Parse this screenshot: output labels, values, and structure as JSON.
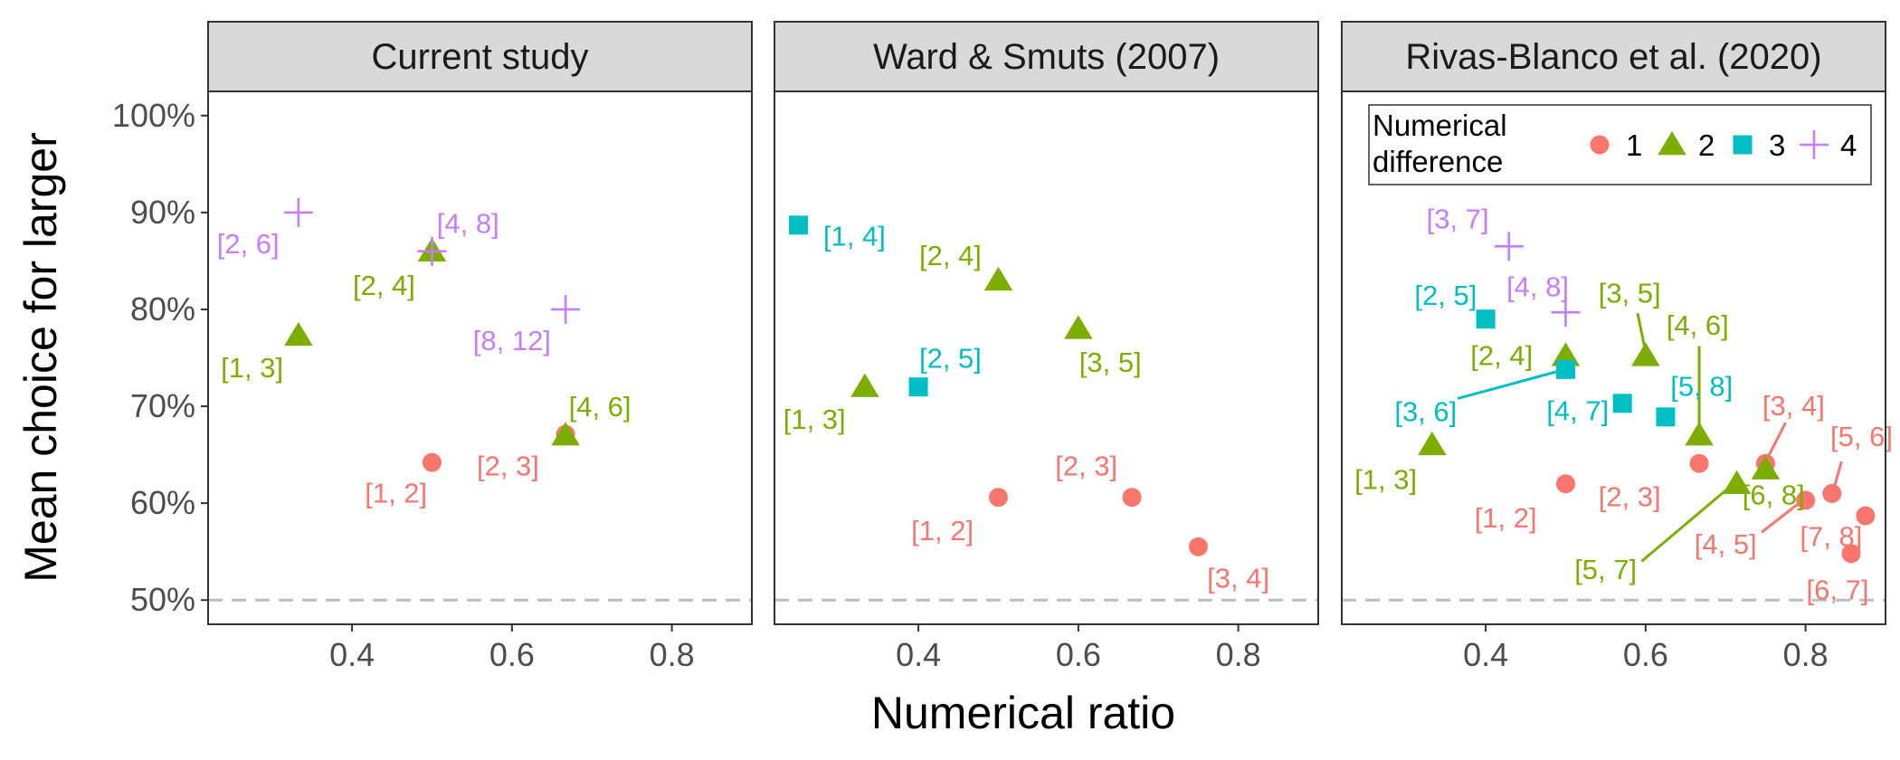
{
  "chart_data": {
    "type": "scatter",
    "xlabel": "Numerical ratio",
    "ylabel": "Mean choice for larger",
    "xlim": [
      0.22,
      0.9
    ],
    "ylim": [
      47.5,
      102.5
    ],
    "x_ticks": [
      0.4,
      0.6,
      0.8
    ],
    "x_tick_labels": [
      "0.4",
      "0.6",
      "0.8"
    ],
    "y_ticks": [
      50,
      60,
      70,
      80,
      90,
      100
    ],
    "y_tick_labels": [
      "50%",
      "60%",
      "70%",
      "80%",
      "90%",
      "100%"
    ],
    "reference_line": 50,
    "grid": false,
    "legend": {
      "title_lines": [
        "Numerical",
        "difference"
      ],
      "placement": "top-right",
      "entries": [
        {
          "key": 1,
          "label": "1",
          "color": "#F8766D",
          "shape": "circle"
        },
        {
          "key": 2,
          "label": "2",
          "color": "#7CAE00",
          "shape": "triangle"
        },
        {
          "key": 3,
          "label": "3",
          "color": "#00BFC4",
          "shape": "square"
        },
        {
          "key": 4,
          "label": "4",
          "color": "#C77CFF",
          "shape": "plus"
        }
      ]
    },
    "panels": [
      {
        "title": "Current study",
        "points": [
          {
            "label": "[1, 2]",
            "x": 0.5,
            "y": 64.2,
            "diff": 1,
            "lx": 0.455,
            "ly": 61.1
          },
          {
            "label": "[2, 3]",
            "x": 0.667,
            "y": 67.1,
            "diff": 1,
            "lx": 0.595,
            "ly": 63.9
          },
          {
            "label": "[1, 3]",
            "x": 0.333,
            "y": 77.3,
            "diff": 2,
            "lx": 0.275,
            "ly": 74.0
          },
          {
            "label": "[2, 4]",
            "x": 0.5,
            "y": 86.0,
            "diff": 2,
            "lx": 0.44,
            "ly": 82.5
          },
          {
            "label": "[4, 6]",
            "x": 0.667,
            "y": 67.0,
            "diff": 2,
            "lx": 0.71,
            "ly": 70.0
          },
          {
            "label": "[2, 6]",
            "x": 0.333,
            "y": 90.0,
            "diff": 4,
            "lx": 0.27,
            "ly": 86.8
          },
          {
            "label": "[4, 8]",
            "x": 0.5,
            "y": 86.0,
            "diff": 4,
            "lx": 0.545,
            "ly": 88.9
          },
          {
            "label": "[8, 12]",
            "x": 0.667,
            "y": 80.0,
            "diff": 4,
            "lx": 0.6,
            "ly": 76.8
          }
        ]
      },
      {
        "title": "Ward & Smuts (2007)",
        "points": [
          {
            "label": "[1, 2]",
            "x": 0.5,
            "y": 60.6,
            "diff": 1,
            "lx": 0.43,
            "ly": 57.2
          },
          {
            "label": "[2, 3]",
            "x": 0.667,
            "y": 60.6,
            "diff": 1,
            "lx": 0.61,
            "ly": 63.9
          },
          {
            "label": "[3, 4]",
            "x": 0.75,
            "y": 55.5,
            "diff": 1,
            "lx": 0.8,
            "ly": 52.3
          },
          {
            "label": "[1, 3]",
            "x": 0.333,
            "y": 72.0,
            "diff": 2,
            "lx": 0.27,
            "ly": 68.7
          },
          {
            "label": "[2, 4]",
            "x": 0.5,
            "y": 83.0,
            "diff": 2,
            "lx": 0.44,
            "ly": 85.6
          },
          {
            "label": "[3, 5]",
            "x": 0.6,
            "y": 78.0,
            "diff": 2,
            "lx": 0.64,
            "ly": 74.6
          },
          {
            "label": "[1, 4]",
            "x": 0.25,
            "y": 88.7,
            "diff": 3,
            "lx": 0.32,
            "ly": 87.6
          },
          {
            "label": "[2, 5]",
            "x": 0.4,
            "y": 72.0,
            "diff": 3,
            "lx": 0.44,
            "ly": 75.0
          }
        ]
      },
      {
        "title": "Rivas-Blanco et al. (2020)",
        "points": [
          {
            "label": "[1, 2]",
            "x": 0.5,
            "y": 62.0,
            "diff": 1,
            "lx": 0.425,
            "ly": 58.5
          },
          {
            "label": "[2, 3]",
            "x": 0.667,
            "y": 64.1,
            "diff": 1,
            "lx": 0.58,
            "ly": 60.7
          },
          {
            "label": "[3, 4]",
            "x": 0.75,
            "y": 64.1,
            "diff": 1,
            "lx": 0.785,
            "ly": 70.1,
            "seg": [
              0.775,
              68.3,
              0.752,
              64.6
            ]
          },
          {
            "label": "[4, 5]",
            "x": 0.8,
            "y": 60.3,
            "diff": 1,
            "lx": 0.7,
            "ly": 55.8,
            "seg": [
              0.745,
              57.0,
              0.795,
              60.2
            ]
          },
          {
            "label": "[5, 6]",
            "x": 0.833,
            "y": 61.0,
            "diff": 1,
            "lx": 0.87,
            "ly": 66.9,
            "seg": [
              0.845,
              64.3,
              0.835,
              61.4
            ]
          },
          {
            "label": "[6, 7]",
            "x": 0.857,
            "y": 54.8,
            "diff": 1,
            "lx": 0.84,
            "ly": 51.1
          },
          {
            "label": "[7, 8]",
            "x": 0.875,
            "y": 58.7,
            "diff": 1,
            "lx": 0.832,
            "ly": 56.6
          },
          {
            "label": "[1, 3]",
            "x": 0.333,
            "y": 66.0,
            "diff": 2,
            "lx": 0.275,
            "ly": 62.5
          },
          {
            "label": "[2, 4]",
            "x": 0.5,
            "y": 75.2,
            "diff": 2,
            "lx": 0.42,
            "ly": 75.3
          },
          {
            "label": "[3, 5]",
            "x": 0.6,
            "y": 75.2,
            "diff": 2,
            "lx": 0.58,
            "ly": 81.7,
            "seg": [
              0.59,
              79.6,
              0.6,
              75.6
            ]
          },
          {
            "label": "[4, 6]",
            "x": 0.667,
            "y": 67.0,
            "diff": 2,
            "lx": 0.665,
            "ly": 78.4,
            "seg": [
              0.667,
              76.2,
              0.667,
              67.5
            ]
          },
          {
            "label": "[5, 7]",
            "x": 0.714,
            "y": 62.0,
            "diff": 2,
            "lx": 0.55,
            "ly": 53.2,
            "seg": [
              0.595,
              54.0,
              0.71,
              62.0
            ]
          },
          {
            "label": "[6, 8]",
            "x": 0.75,
            "y": 63.5,
            "diff": 2,
            "lx": 0.76,
            "ly": 60.9
          },
          {
            "label": "[2, 5]",
            "x": 0.4,
            "y": 79.0,
            "diff": 3,
            "lx": 0.35,
            "ly": 81.5
          },
          {
            "label": "[3, 6]",
            "x": 0.5,
            "y": 73.8,
            "diff": 3,
            "lx": 0.325,
            "ly": 69.5,
            "seg": [
              0.365,
              70.8,
              0.49,
              73.6
            ]
          },
          {
            "label": "[4, 7]",
            "x": 0.571,
            "y": 70.3,
            "diff": 3,
            "lx": 0.515,
            "ly": 69.6
          },
          {
            "label": "[5, 8]",
            "x": 0.625,
            "y": 68.9,
            "diff": 3,
            "lx": 0.67,
            "ly": 72.1
          },
          {
            "label": "[3, 7]",
            "x": 0.429,
            "y": 86.5,
            "diff": 4,
            "lx": 0.365,
            "ly": 89.4
          },
          {
            "label": "[4, 8]",
            "x": 0.5,
            "y": 79.7,
            "diff": 4,
            "lx": 0.465,
            "ly": 82.4
          }
        ]
      }
    ]
  }
}
